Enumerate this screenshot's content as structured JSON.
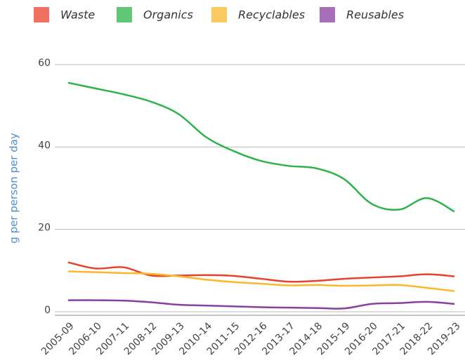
{
  "chart_data": {
    "type": "line",
    "y_label": "g per person per day",
    "categories": [
      "2005-09",
      "2006-10",
      "2007-11",
      "2008-12",
      "2009-13",
      "2010-14",
      "2011-15",
      "2012-16",
      "2013-17",
      "2014-18",
      "2015-19",
      "2016-20",
      "2017-21",
      "2018-22",
      "2019-23"
    ],
    "series": [
      {
        "name": "Waste",
        "color": "#e8412c",
        "values": [
          12,
          10.5,
          10.8,
          8.8,
          8.8,
          8.9,
          8.7,
          8,
          7.3,
          7.5,
          8,
          8.3,
          8.6,
          9.1,
          8.6
        ]
      },
      {
        "name": "Organics",
        "color": "#2db34a",
        "values": [
          55.6,
          54.2,
          52.8,
          51,
          48,
          42.4,
          39,
          36.6,
          35.4,
          34.8,
          32.2,
          26.2,
          24.8,
          27.6,
          24.3
        ]
      },
      {
        "name": "Recyclables",
        "color": "#fbb829",
        "values": [
          9.8,
          9.6,
          9.4,
          9.2,
          8.6,
          7.8,
          7.2,
          6.8,
          6.4,
          6.5,
          6.3,
          6.4,
          6.5,
          5.8,
          5
        ]
      },
      {
        "name": "Reusables",
        "color": "#8a3fa0",
        "values": [
          2.8,
          2.8,
          2.7,
          2.3,
          1.7,
          1.5,
          1.3,
          1.1,
          1.0,
          0.9,
          0.8,
          1.9,
          2.1,
          2.4,
          1.9
        ]
      }
    ],
    "ylim": [
      0,
      60
    ],
    "yticks": [
      0,
      20,
      40,
      60
    ],
    "grid": true,
    "legend": "top"
  }
}
